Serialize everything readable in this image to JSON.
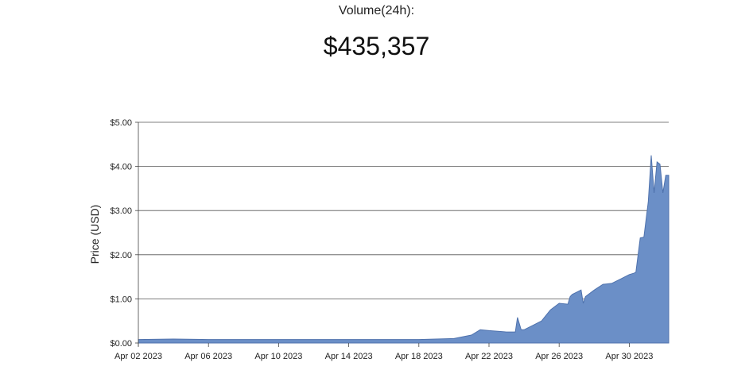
{
  "header": {
    "volume_label": "Volume(24h):",
    "volume_value": "$435,357"
  },
  "chart_data": {
    "type": "area",
    "ylabel": "Price (USD)",
    "xlabel": "",
    "ylim": [
      0,
      5
    ],
    "y_ticks": [
      0,
      1,
      2,
      3,
      4,
      5
    ],
    "y_tick_labels": [
      "$0.00",
      "$1.00",
      "$2.00",
      "$3.00",
      "$4.00",
      "$5.00"
    ],
    "x_ticks": [
      "2023-04-02",
      "2023-04-06",
      "2023-04-10",
      "2023-04-14",
      "2023-04-18",
      "2023-04-22",
      "2023-04-26",
      "2023-04-30"
    ],
    "x_tick_labels": [
      "Apr 02 2023",
      "Apr 06 2023",
      "Apr 10 2023",
      "Apr 14 2023",
      "Apr 18 2023",
      "Apr 22 2023",
      "Apr 26 2023",
      "Apr 30 2023"
    ],
    "xlim": [
      "2023-04-02",
      "2023-05-02T06:00"
    ],
    "grid": "horizontal",
    "fill_color": "#6b8fc7",
    "line_color": "#4f72ad",
    "series": [
      {
        "x": [
          "2023-04-02",
          "2023-04-04",
          "2023-04-06",
          "2023-04-10",
          "2023-04-14",
          "2023-04-18",
          "2023-04-19",
          "2023-04-20",
          "2023-04-21",
          "2023-04-21T12:00",
          "2023-04-22",
          "2023-04-23",
          "2023-04-23T12:00",
          "2023-04-23T15:00",
          "2023-04-23T20:00",
          "2023-04-24",
          "2023-04-24T12:00",
          "2023-04-25",
          "2023-04-25T12:00",
          "2023-04-26",
          "2023-04-26T12:00",
          "2023-04-26T15:00",
          "2023-04-26T18:00",
          "2023-04-27T06:00",
          "2023-04-27T09:00",
          "2023-04-27T12:00",
          "2023-04-28",
          "2023-04-28T12:00",
          "2023-04-29",
          "2023-04-29T12:00",
          "2023-04-30",
          "2023-04-30T06:00",
          "2023-04-30T09:00",
          "2023-04-30T15:00",
          "2023-04-30T20:00",
          "2023-05-01T02:00",
          "2023-05-01T06:00",
          "2023-05-01T10:00",
          "2023-05-01T14:00",
          "2023-05-01T18:00",
          "2023-05-01T22:00",
          "2023-05-02T02:00",
          "2023-05-02T06:00"
        ],
        "y": [
          0.08,
          0.09,
          0.08,
          0.08,
          0.08,
          0.08,
          0.09,
          0.1,
          0.18,
          0.3,
          0.28,
          0.25,
          0.25,
          0.58,
          0.3,
          0.3,
          0.4,
          0.5,
          0.75,
          0.9,
          0.88,
          1.05,
          1.1,
          1.2,
          0.9,
          1.05,
          1.2,
          1.33,
          1.35,
          1.45,
          1.55,
          1.58,
          1.6,
          2.38,
          2.4,
          3.2,
          4.25,
          3.4,
          4.1,
          4.05,
          3.4,
          3.8,
          3.8
        ]
      }
    ]
  }
}
